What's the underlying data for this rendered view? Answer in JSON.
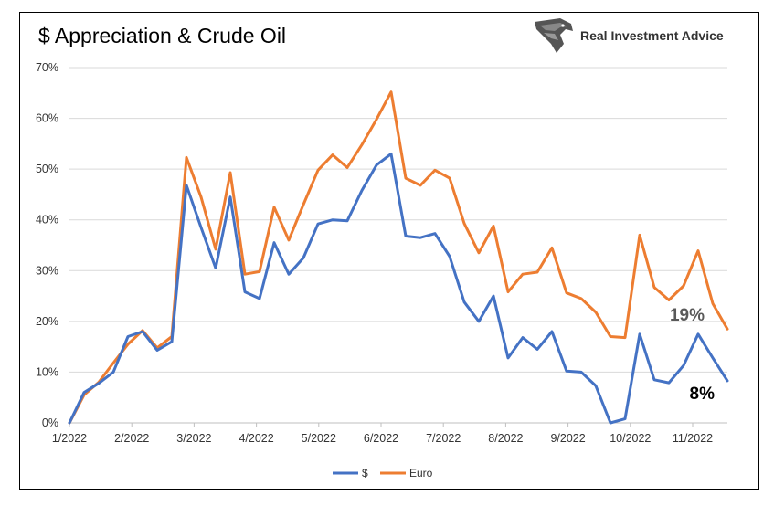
{
  "brand": {
    "name": "Real Investment Advice",
    "logo_icon": "eagle-head-icon"
  },
  "colors": {
    "usd": "#4472C4",
    "euro": "#ED7D31",
    "grid": "#d9d9d9"
  },
  "chart_data": {
    "type": "line",
    "title": "$ Appreciation & Crude Oil",
    "xlabel": "",
    "ylabel": "",
    "ylim": [
      0,
      70
    ],
    "yticks": [
      "0%",
      "10%",
      "20%",
      "30%",
      "40%",
      "50%",
      "60%",
      "70%"
    ],
    "x_tick_labels": [
      "1/2022",
      "2/2022",
      "3/2022",
      "4/2022",
      "5/2022",
      "6/2022",
      "7/2022",
      "8/2022",
      "9/2022",
      "10/2022",
      "11/2022"
    ],
    "grid": true,
    "legend_position": "bottom",
    "series": [
      {
        "name": "$",
        "color": "#4472C4",
        "end_label": "8%",
        "values": [
          0,
          6,
          7.8,
          10,
          17,
          18,
          14.3,
          16,
          46.8,
          38.5,
          30.5,
          44.5,
          25.8,
          24.5,
          35.5,
          29.3,
          32.5,
          39.2,
          40,
          39.8,
          45.8,
          50.8,
          53,
          36.8,
          36.5,
          37.3,
          32.8,
          23.8,
          20,
          25,
          12.8,
          16.8,
          14.5,
          18,
          10.2,
          10,
          7.3,
          0,
          0.8,
          17.5,
          8.5,
          7.9,
          11.3,
          17.5,
          12.8,
          8.3
        ]
      },
      {
        "name": "Euro",
        "color": "#ED7D31",
        "end_label": "19%",
        "values": [
          0,
          5.5,
          8,
          11.8,
          15.5,
          18.2,
          14.8,
          17,
          52.3,
          44.5,
          34.2,
          49.3,
          29.3,
          29.8,
          42.5,
          36,
          43,
          49.8,
          52.8,
          50.3,
          54.8,
          59.8,
          65.2,
          48.2,
          46.8,
          49.8,
          48.2,
          39.3,
          33.5,
          38.8,
          25.8,
          29.3,
          29.7,
          34.5,
          25.6,
          24.5,
          21.8,
          17,
          16.8,
          37,
          26.7,
          24.2,
          27,
          33.9,
          23.5,
          18.5
        ]
      }
    ]
  }
}
